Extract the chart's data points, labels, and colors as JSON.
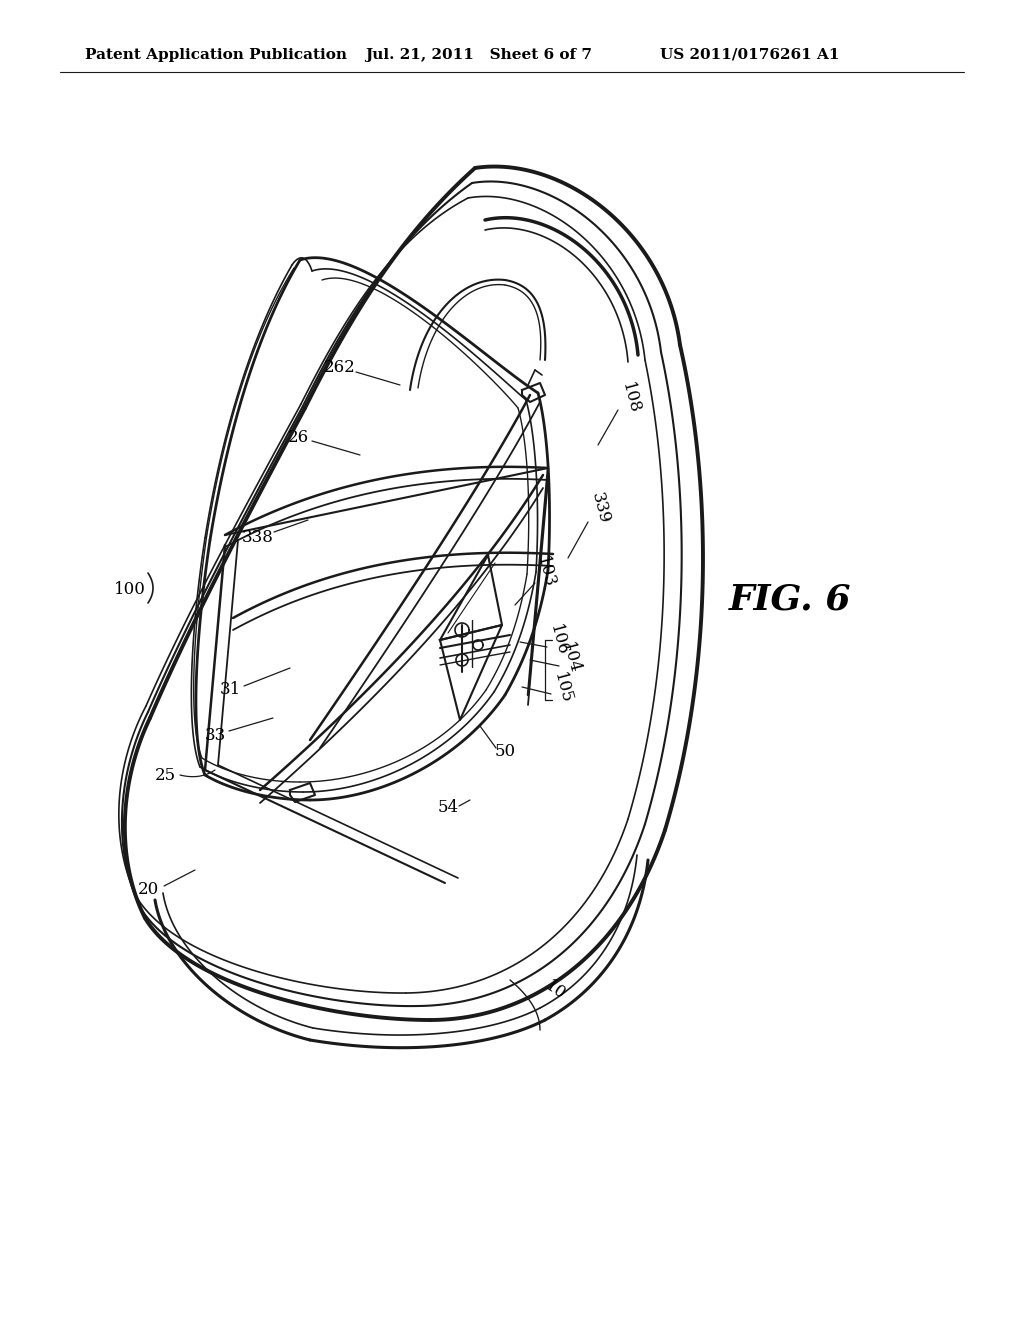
{
  "background_color": "#ffffff",
  "header_left": "Patent Application Publication",
  "header_middle": "Jul. 21, 2011   Sheet 6 of 7",
  "header_right": "US 2011/0176261 A1",
  "fig_label": "FIG. 6",
  "line_color": "#1a1a1a",
  "font_size_header": 11,
  "font_size_fig": 26,
  "font_size_ref": 12
}
